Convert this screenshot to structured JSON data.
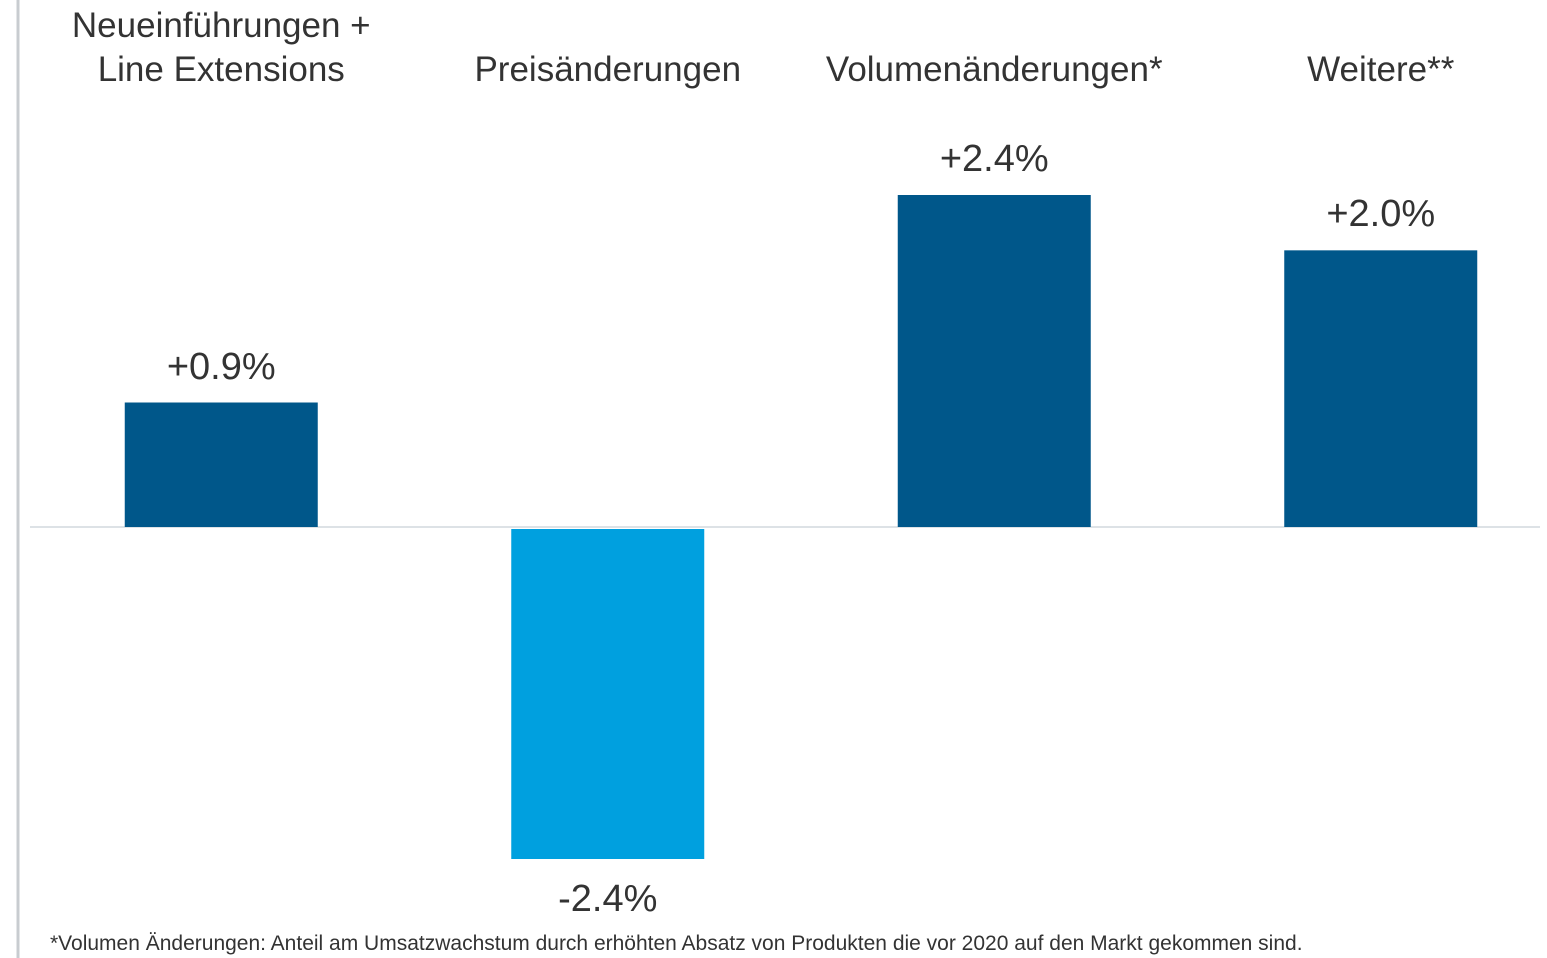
{
  "chart_data": {
    "type": "bar",
    "categories": [
      "Neueinführungen +\nLine Extensions",
      "Preisänderungen",
      "Volumenänderungen*",
      "Weitere**"
    ],
    "values": [
      0.9,
      -2.4,
      2.4,
      2.0
    ],
    "value_labels": [
      "+0.9%",
      "-2.4%",
      "+2.4%",
      "+2.0%"
    ],
    "colors": [
      "#00578a",
      "#00a0df",
      "#00578a",
      "#00578a"
    ],
    "ylim": [
      -2.4,
      2.4
    ],
    "footnote": "*Volumen Änderungen: Anteil am Umsatzwachstum durch erhöhten Absatz von Produkten die vor 2020 auf den Markt gekommen sind."
  }
}
